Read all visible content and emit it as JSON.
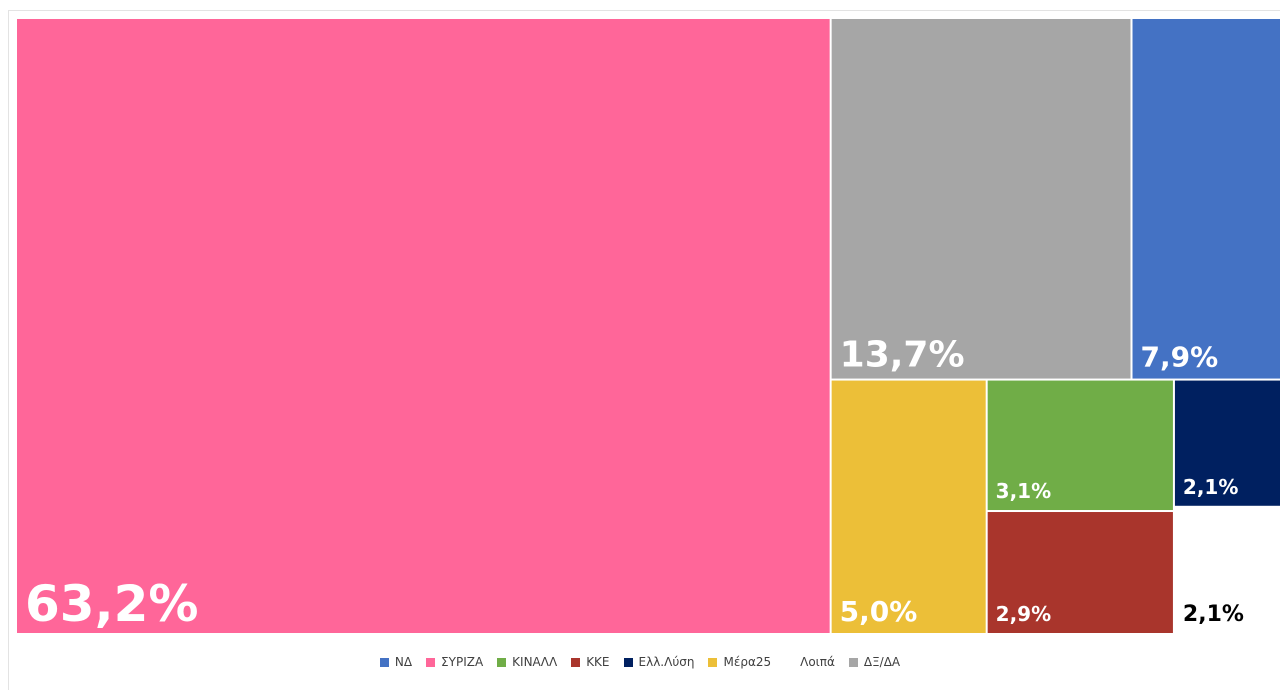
{
  "chart_data": {
    "type": "treemap",
    "categories": [
      "ΣΥΡΙΖΑ",
      "ΔΞ/ΔΑ",
      "ΝΔ",
      "Μέρα25",
      "ΚΙΝΑΛ",
      "ΚΚΕ",
      "Ελλ.Λύση",
      "Λοιπά"
    ],
    "values": [
      63.2,
      13.7,
      7.9,
      5.0,
      3.1,
      2.9,
      2.1,
      2.1
    ],
    "labels": [
      "63,2%",
      "13,7%",
      "7,9%",
      "5,0%",
      "3,1%",
      "2,9%",
      "2,1%",
      "2,1%"
    ],
    "colors": [
      "#ff6699",
      "#a6a6a6",
      "#4472c4",
      "#ecbf38",
      "#70ad47",
      "#a9352c",
      "#002060",
      "#ffffff"
    ],
    "label_colors": [
      "#ffffff",
      "#ffffff",
      "#ffffff",
      "#ffffff",
      "#ffffff",
      "#ffffff",
      "#ffffff",
      "#000000"
    ],
    "legend_position": "bottom"
  },
  "legend": [
    {
      "name": "ΝΔ",
      "color": "#4472c4"
    },
    {
      "name": "ΣΥΡΙΖΑ",
      "color": "#ff6699"
    },
    {
      "name": "ΚΙΝΑΛΛ",
      "color": "#70ad47"
    },
    {
      "name": "ΚΚΕ",
      "color": "#a9352c"
    },
    {
      "name": "Ελλ.Λύση",
      "color": "#002060"
    },
    {
      "name": "Μέρα25",
      "color": "#ecbf38"
    },
    {
      "name": "Λοιπά",
      "color": "#ffffff"
    },
    {
      "name": "ΔΞ/ΔΑ",
      "color": "#a6a6a6"
    }
  ]
}
